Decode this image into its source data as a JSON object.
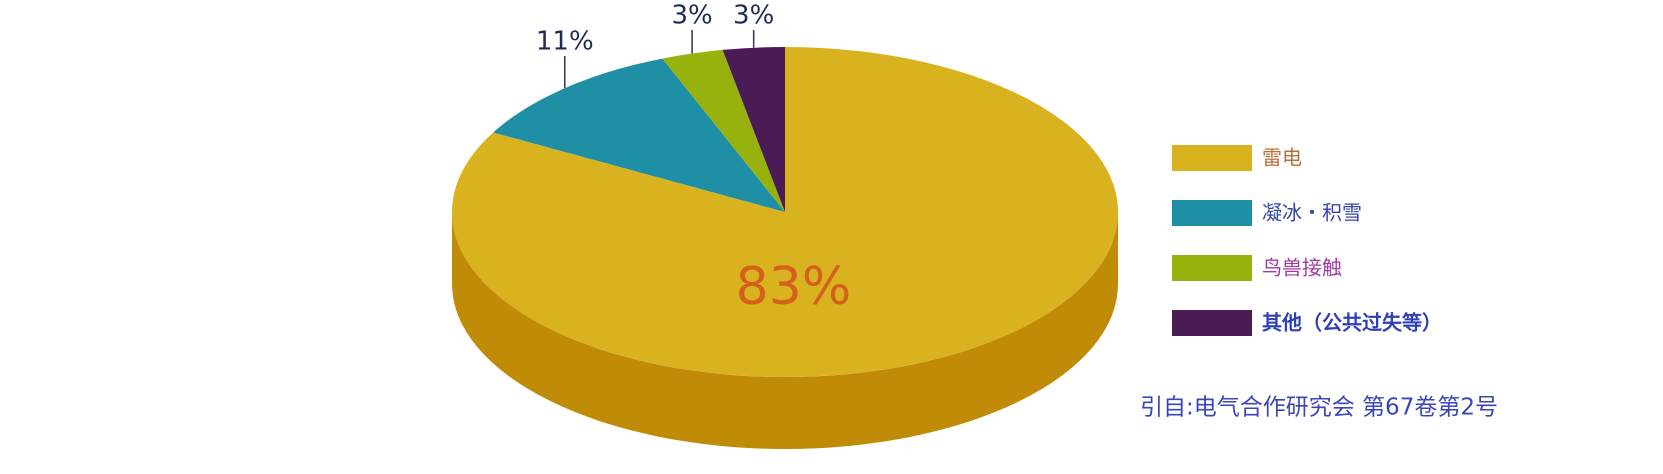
{
  "chart_data": {
    "type": "pie3d",
    "categories": [
      "雷电",
      "凝冰・积雪",
      "鸟兽接触",
      "其他（公共过失等）"
    ],
    "values": [
      83,
      11,
      3,
      3
    ],
    "value_labels": [
      "83%",
      "11%",
      "3%",
      "3%"
    ],
    "colors": [
      "#d9b21f",
      "#1e8fa5",
      "#97b20d",
      "#4b1b56"
    ],
    "side_colors": [
      "#c08c08",
      "#14707f",
      "#6f8a08",
      "#341039"
    ],
    "legend_text_colors": [
      "#b8703a",
      "#3546a8",
      "#a03aa0",
      "#2f3fb5"
    ],
    "source": "引自:电气合作研究会  第67卷第2号"
  }
}
